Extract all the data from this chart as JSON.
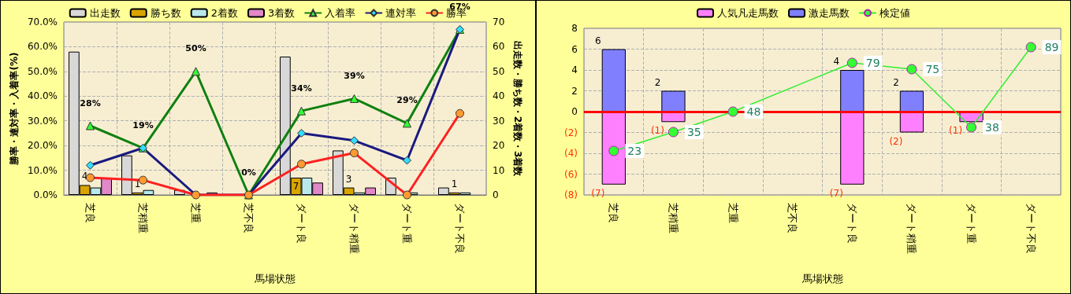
{
  "chart_data": [
    {
      "type": "bar",
      "categories": [
        "芝良",
        "芝稍重",
        "芝重",
        "芝不良",
        "ダート良",
        "ダート稍重",
        "ダート重",
        "ダート不良"
      ],
      "xlabel": "馬場状態",
      "ylabel": "勝率・連対率・入着率(%)",
      "y2label": "出走数・勝ち数・2着数・3着数",
      "legend": "top",
      "grid": true,
      "ylim": [
        0,
        70
      ],
      "yticks": [
        {
          "value": 0,
          "label": "0.0%"
        },
        {
          "value": 10,
          "label": "10.0%"
        },
        {
          "value": 20,
          "label": "20.0%"
        },
        {
          "value": 30,
          "label": "30.0%"
        },
        {
          "value": 40,
          "label": "40.0%"
        },
        {
          "value": 50,
          "label": "50.0%"
        },
        {
          "value": 60,
          "label": "60.0%"
        },
        {
          "value": 70,
          "label": "70.0%"
        }
      ],
      "y2lim": [
        0,
        70
      ],
      "y2ticks": [
        0,
        10,
        20,
        30,
        40,
        50,
        60,
        70
      ],
      "series": [
        {
          "name": "出走数",
          "color": "#d8d8d8",
          "axis": "y2",
          "values": [
            58,
            16,
            2,
            null,
            56,
            18,
            7,
            3
          ]
        },
        {
          "name": "勝ち数",
          "color": "#d9a400",
          "axis": "y2",
          "values": [
            4,
            1,
            0,
            null,
            7,
            3,
            0,
            1
          ],
          "value_labels": [
            "4",
            "1",
            null,
            null,
            "7",
            "3",
            null,
            "1"
          ]
        },
        {
          "name": "2着数",
          "color": "#b8e8ec",
          "axis": "y2",
          "values": [
            3,
            2,
            0,
            null,
            7,
            1,
            1,
            1
          ]
        },
        {
          "name": "3着数",
          "color": "#e088c8",
          "axis": "y2",
          "values": [
            7,
            0,
            1,
            null,
            5,
            3,
            0,
            0
          ]
        },
        {
          "name": "入着率",
          "type": "line",
          "color": "#108010",
          "marker": "triangle",
          "values": [
            28,
            19,
            50,
            0,
            34,
            39,
            29,
            67
          ],
          "value_labels": [
            "28%",
            "19%",
            "50%",
            "0%",
            "34%",
            "39%",
            "29%",
            "67%"
          ]
        },
        {
          "name": "連対率",
          "type": "line",
          "color": "#1a1a80",
          "marker": "diamond",
          "values": [
            12,
            19,
            0,
            0,
            25,
            22,
            14,
            67
          ]
        },
        {
          "name": "勝率",
          "type": "line",
          "color": "#ff2020",
          "marker": "circle",
          "values": [
            7,
            6,
            0,
            0,
            12.5,
            17,
            0,
            33
          ]
        }
      ]
    },
    {
      "type": "bar",
      "categories": [
        "芝良",
        "芝稍重",
        "芝重",
        "芝不良",
        "ダート良",
        "ダート稍重",
        "ダート重",
        "ダート不良"
      ],
      "xlabel": "馬場状態",
      "legend": "top",
      "grid": true,
      "stacked": true,
      "ylim": [
        -8,
        8
      ],
      "yticks": [
        {
          "value": -8,
          "label": "(8)"
        },
        {
          "value": -6,
          "label": "(6)"
        },
        {
          "value": -4,
          "label": "(4)"
        },
        {
          "value": -2,
          "label": "(2)"
        },
        0,
        2,
        4,
        6,
        8
      ],
      "y2lim": [
        -5,
        101
      ],
      "ref_lines": [
        {
          "axis": "y",
          "value": 0,
          "color": "#ff0000"
        }
      ],
      "series": [
        {
          "name": "人気凡走馬数",
          "color": "#ff80ff",
          "values": [
            -7,
            -1,
            0,
            0,
            -7,
            -2,
            -1,
            0
          ],
          "value_labels": [
            "(7)",
            "(1)",
            null,
            null,
            "(7)",
            "(2)",
            "(1)",
            null
          ]
        },
        {
          "name": "激走馬数",
          "color": "#8080ff",
          "values": [
            6,
            2,
            0,
            0,
            4,
            2,
            0,
            0
          ],
          "value_labels": [
            "6",
            "2",
            null,
            null,
            "4",
            "2",
            null,
            null
          ]
        },
        {
          "name": "検定値",
          "type": "line",
          "color": "#33ee33",
          "marker": "circle",
          "axis": "y2",
          "values": [
            23,
            35,
            48,
            null,
            79,
            75,
            38,
            89
          ],
          "data_labels": true
        }
      ]
    }
  ]
}
